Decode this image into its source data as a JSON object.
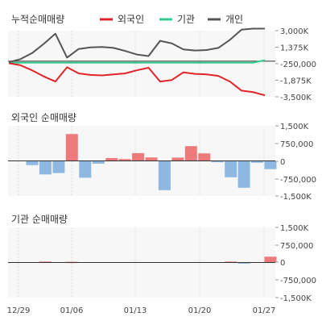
{
  "colors": {
    "foreign": "#e0242a",
    "institution": "#2ecc8f",
    "individual": "#555555",
    "bar_pos": "#ee7b7b",
    "bar_neg": "#8cb8e2",
    "plot_bg": "#f7f7f7",
    "zero_line": "#333333",
    "grid": "#e0e0e0"
  },
  "chart_data": [
    {
      "type": "line",
      "title": "누적순매매량",
      "legend": {
        "placement": "top",
        "entries": [
          {
            "label": "외국인",
            "color": "#e0242a"
          },
          {
            "label": "기관",
            "color": "#2ecc8f"
          },
          {
            "label": "개인",
            "color": "#555555"
          }
        ]
      },
      "x_ticks": [
        "12/29",
        "01/06",
        "01/13",
        "01/20",
        "01/27"
      ],
      "y_ticks": [
        "3,000K",
        "1,375K",
        "-250,000",
        "-1,875K",
        "-3,500K"
      ],
      "ylim": [
        -3500000,
        3000000
      ],
      "series": [
        {
          "name": "외국인",
          "color": "#e0242a",
          "values": [
            -200000,
            -400000,
            -900000,
            -1500000,
            -2000000,
            -600000,
            -1200000,
            -1350000,
            -1400000,
            -1300000,
            -1200000,
            -900000,
            -650000,
            -2000000,
            -1850000,
            -1100000,
            -1250000,
            -1300000,
            -1450000,
            -2000000,
            -2900000,
            -3050000,
            -3350000
          ]
        },
        {
          "name": "기관",
          "color": "#2ecc8f",
          "values": [
            -150000,
            -150000,
            -150000,
            -150000,
            -150000,
            -150000,
            -150000,
            -150000,
            -150000,
            -150000,
            -150000,
            -150000,
            -150000,
            -150000,
            -150000,
            -150000,
            -150000,
            -150000,
            -150000,
            -150000,
            -150000,
            -150000,
            100000
          ]
        },
        {
          "name": "개인",
          "color": "#555555",
          "values": [
            -100000,
            200000,
            800000,
            1700000,
            2700000,
            350000,
            1200000,
            1350000,
            1400000,
            1300000,
            1000000,
            650000,
            500000,
            2000000,
            1750000,
            1150000,
            1050000,
            1100000,
            1300000,
            2100000,
            3100000,
            3200000,
            3200000
          ]
        }
      ]
    },
    {
      "type": "bar",
      "title": "외국인 순매매량",
      "y_ticks": [
        "1,500K",
        "750,000",
        "0",
        "-750,000",
        "-1,500K"
      ],
      "ylim": [
        -1500000,
        1500000
      ],
      "values": [
        -180000,
        -580000,
        -520000,
        1150000,
        -720000,
        -120000,
        120000,
        80000,
        330000,
        150000,
        -1250000,
        140000,
        630000,
        320000,
        -60000,
        -700000,
        -1150000,
        -80000,
        -350000
      ]
    },
    {
      "type": "bar",
      "title": "기관 순매매량",
      "y_ticks": [
        "1,500K",
        "750,000",
        "0",
        "-750,000",
        "-1,500K"
      ],
      "ylim": [
        -1500000,
        1500000
      ],
      "values": [
        0,
        40000,
        0,
        30000,
        0,
        0,
        0,
        0,
        0,
        0,
        0,
        0,
        0,
        0,
        0,
        40000,
        -20000,
        0,
        250000
      ]
    }
  ]
}
